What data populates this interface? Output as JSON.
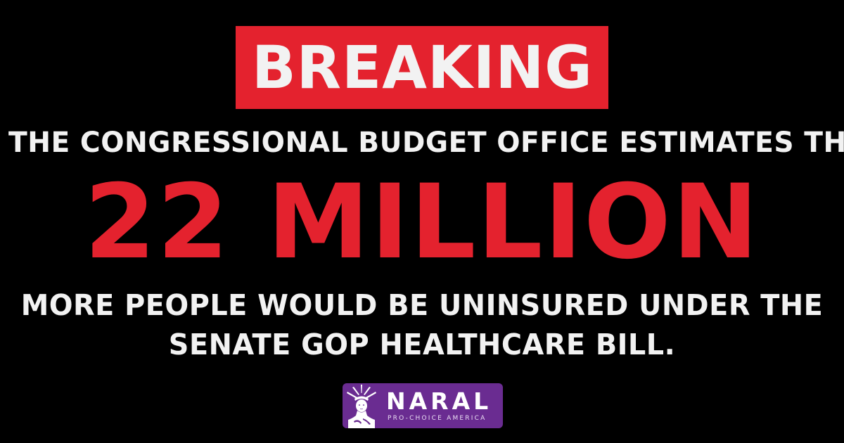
{
  "badge": {
    "label": "BREAKING"
  },
  "statement": {
    "intro": "THE CONGRESSIONAL BUDGET OFFICE ESTIMATES THAT",
    "figure": "22 MILLION",
    "outro_line_1": "MORE PEOPLE WOULD BE UNINSURED UNDER THE",
    "outro_line_2": "SENATE GOP HEALTHCARE BILL."
  },
  "logo": {
    "name": "NARAL",
    "tagline": "PRO-CHOICE AMERICA",
    "icon": "statue-of-liberty-icon"
  },
  "colors": {
    "background": "#000000",
    "accent_red": "#e4222e",
    "text_white": "#f2f2f2",
    "logo_purple": "#6a2c91"
  }
}
